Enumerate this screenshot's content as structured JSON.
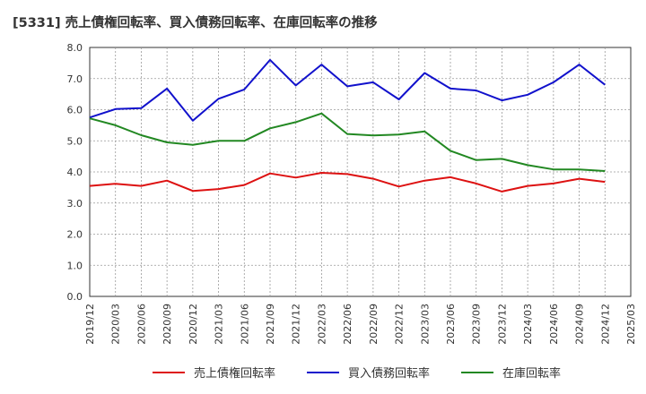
{
  "chart_data": {
    "type": "line",
    "title": "[5331]  売上債権回転率、買入債務回転率、在庫回転率の推移",
    "xlabel": "",
    "ylabel": "",
    "ylim": [
      0,
      8
    ],
    "yticks": [
      0.0,
      1.0,
      2.0,
      3.0,
      4.0,
      5.0,
      6.0,
      7.0,
      8.0
    ],
    "ytick_labels": [
      "0.0",
      "1.0",
      "2.0",
      "3.0",
      "4.0",
      "5.0",
      "6.0",
      "7.0",
      "8.0"
    ],
    "x": [
      "2019/12",
      "2020/03",
      "2020/06",
      "2020/09",
      "2020/12",
      "2021/03",
      "2021/06",
      "2021/09",
      "2021/12",
      "2022/03",
      "2022/06",
      "2022/09",
      "2022/12",
      "2023/03",
      "2023/06",
      "2023/09",
      "2023/12",
      "2024/03",
      "2024/06",
      "2024/09",
      "2024/12",
      "2025/03"
    ],
    "grid": true,
    "legend_position": "bottom",
    "series": [
      {
        "name": "売上債権回転率",
        "color": "#dd1111",
        "values": [
          3.55,
          3.62,
          3.55,
          3.72,
          3.39,
          3.45,
          3.58,
          3.95,
          3.82,
          3.97,
          3.93,
          3.78,
          3.53,
          3.72,
          3.83,
          3.63,
          3.37,
          3.55,
          3.63,
          3.78,
          3.68,
          null
        ]
      },
      {
        "name": "買入債務回転率",
        "color": "#1111cc",
        "values": [
          5.75,
          6.02,
          6.05,
          6.68,
          5.65,
          6.35,
          6.65,
          7.6,
          6.78,
          7.45,
          6.75,
          6.88,
          6.33,
          7.18,
          6.68,
          6.62,
          6.3,
          6.48,
          6.88,
          7.45,
          6.8,
          null
        ]
      },
      {
        "name": "在庫回転率",
        "color": "#228822",
        "values": [
          5.72,
          5.5,
          5.18,
          4.95,
          4.87,
          5.0,
          5.0,
          5.4,
          5.6,
          5.88,
          5.22,
          5.17,
          5.2,
          5.3,
          4.68,
          4.38,
          4.42,
          4.22,
          4.08,
          4.08,
          4.03,
          null
        ]
      }
    ]
  }
}
